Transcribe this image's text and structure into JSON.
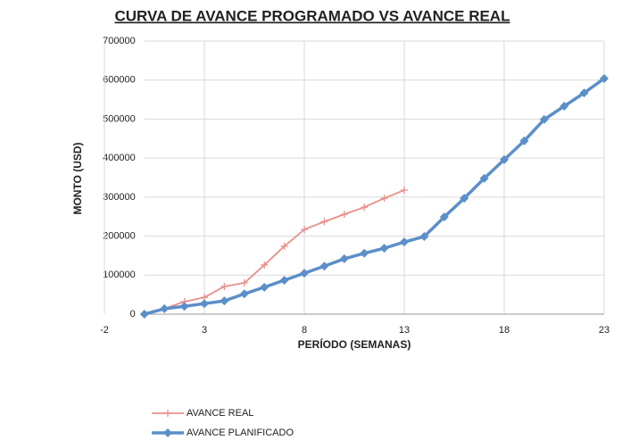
{
  "chart_data": {
    "type": "line",
    "title": "CURVA DE AVANCE PROGRAMADO VS AVANCE REAL",
    "x_label": "PERÍODO (SEMANAS)",
    "y_label": "MONTO (USD)",
    "xlim": [
      -2,
      23
    ],
    "xticks": [
      -2,
      3,
      8,
      13,
      18,
      23
    ],
    "ylim": [
      0,
      700000
    ],
    "yticks": [
      0,
      100000,
      200000,
      300000,
      400000,
      500000,
      600000,
      700000
    ],
    "grid": true,
    "legend": "bottom",
    "series": [
      {
        "name": "AVANCE REAL",
        "color": "#e8908a",
        "marker": "plus",
        "x": [
          0,
          1,
          2,
          3,
          4,
          5,
          6,
          7,
          8,
          9,
          10,
          11,
          12,
          13
        ],
        "values": [
          0,
          14000,
          32000,
          43000,
          71000,
          80000,
          126000,
          174000,
          217000,
          237000,
          256000,
          274000,
          297000,
          318000
        ]
      },
      {
        "name": "AVANCE PLANIFICADO",
        "color": "#5b8fc9",
        "marker": "diamond",
        "x": [
          0,
          1,
          2,
          3,
          4,
          5,
          6,
          7,
          8,
          9,
          10,
          11,
          12,
          13,
          14,
          15,
          16,
          17,
          18,
          19,
          20,
          21,
          22,
          23
        ],
        "values": [
          0,
          14000,
          20000,
          27000,
          34000,
          52000,
          69000,
          87000,
          105000,
          123000,
          142000,
          156000,
          169000,
          185000,
          199000,
          249000,
          297000,
          348000,
          396000,
          444000,
          499000,
          533000,
          567000,
          604000
        ]
      }
    ]
  }
}
